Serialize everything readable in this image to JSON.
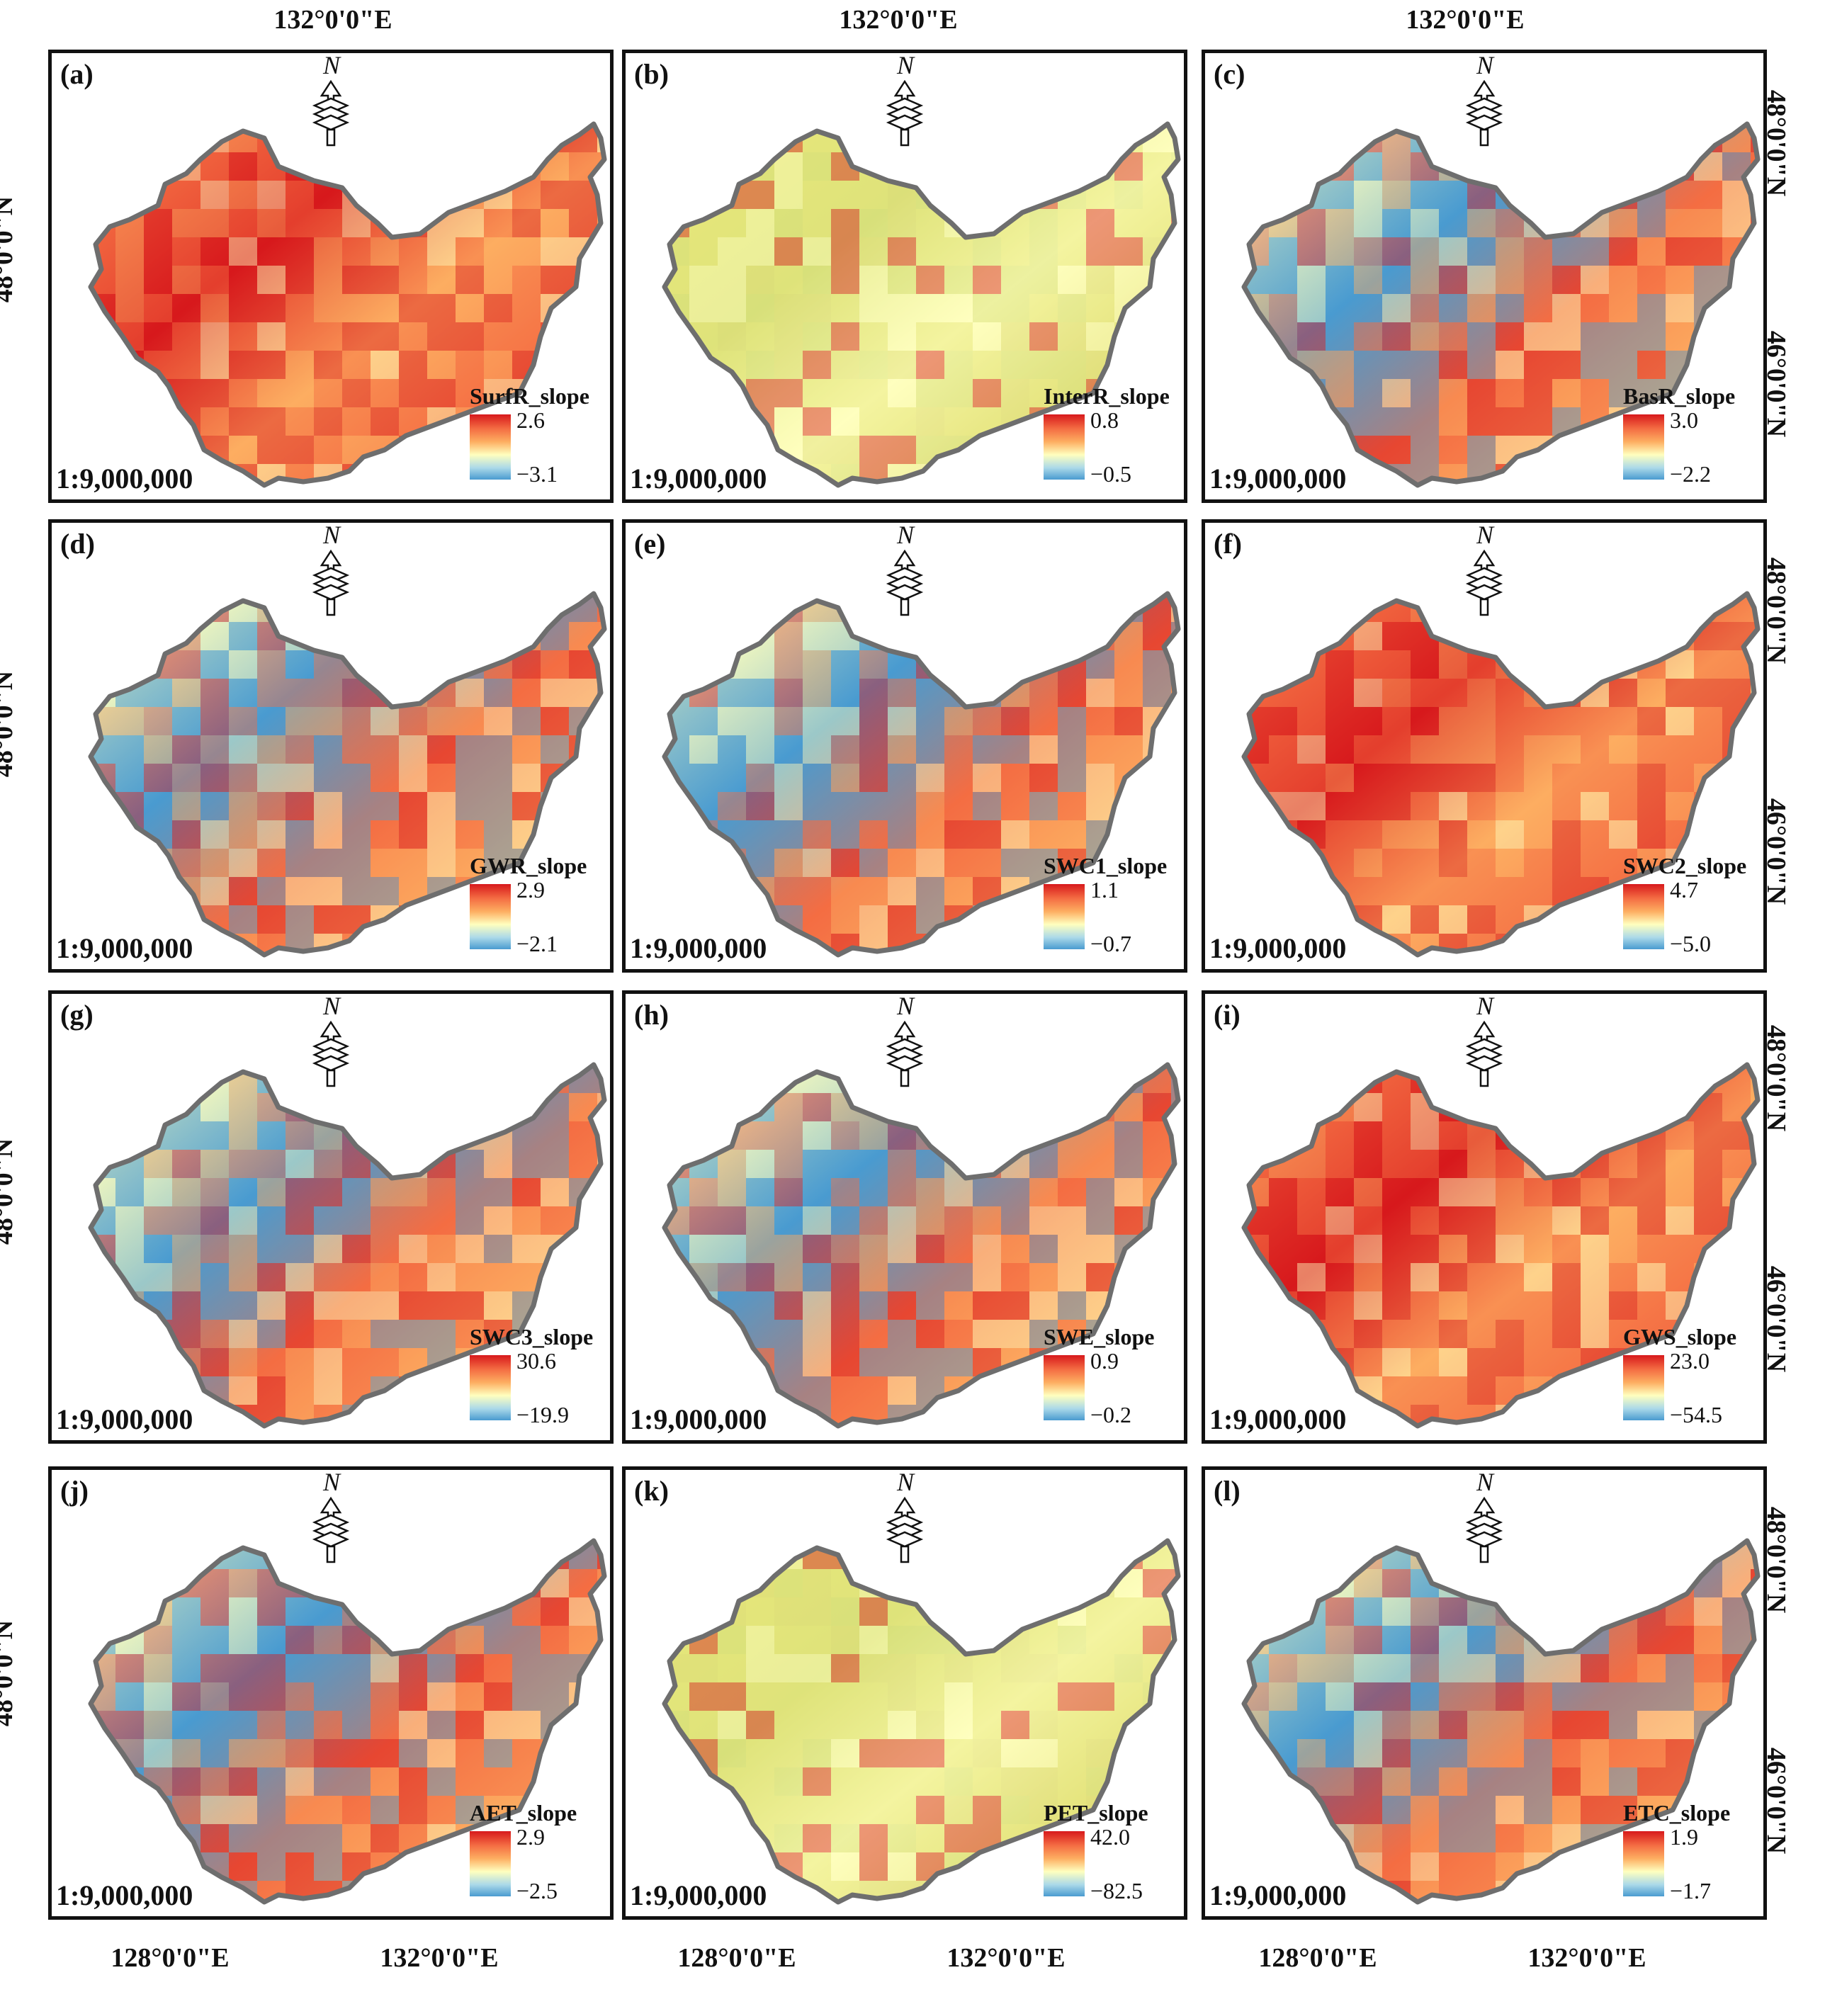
{
  "figure": {
    "top_labels": [
      "132°0'0\"E",
      "132°0'0\"E",
      "132°0'0\"E"
    ],
    "bottom_labels": [
      "128°0'0\"E",
      "132°0'0\"E",
      "128°0'0\"E",
      "132°0'0\"E",
      "128°0'0\"E",
      "132°0'0\"E"
    ],
    "left_label": "48°0'0\"N",
    "right_labels": [
      "48°0'0\"N",
      "46°0'0\"N"
    ],
    "scale_text": "1:9,000,000",
    "north_letter": "N"
  },
  "panels": [
    {
      "letter": "(a)",
      "legend": "SurfR_slope",
      "max": "2.6",
      "min": "−3.1",
      "palette": "red"
    },
    {
      "letter": "(b)",
      "legend": "InterR_slope",
      "max": "0.8",
      "min": "−0.5",
      "palette": "yellow"
    },
    {
      "letter": "(c)",
      "legend": "BasR_slope",
      "max": "3.0",
      "min": "−2.2",
      "palette": "mixed"
    },
    {
      "letter": "(d)",
      "legend": "GWR_slope",
      "max": "2.9",
      "min": "−2.1",
      "palette": "mixed"
    },
    {
      "letter": "(e)",
      "legend": "SWC1_slope",
      "max": "1.1",
      "min": "−0.7",
      "palette": "mixed"
    },
    {
      "letter": "(f)",
      "legend": "SWC2_slope",
      "max": "4.7",
      "min": "−5.0",
      "palette": "red"
    },
    {
      "letter": "(g)",
      "legend": "SWC3_slope",
      "max": "30.6",
      "min": "−19.9",
      "palette": "mixed"
    },
    {
      "letter": "(h)",
      "legend": "SWE_slope",
      "max": "0.9",
      "min": "−0.2",
      "palette": "mixed"
    },
    {
      "letter": "(i)",
      "legend": "GWS_slope",
      "max": "23.0",
      "min": "−54.5",
      "palette": "red"
    },
    {
      "letter": "(j)",
      "legend": "AET_slope",
      "max": "2.9",
      "min": "−2.5",
      "palette": "mixed"
    },
    {
      "letter": "(k)",
      "legend": "PET_slope",
      "max": "42.0",
      "min": "−82.5",
      "palette": "yellow"
    },
    {
      "letter": "(l)",
      "legend": "ETC_slope",
      "max": "1.9",
      "min": "−1.7",
      "palette": "mixed"
    }
  ],
  "colors": {
    "high": "#d7191c",
    "mid_high": "#f46d43",
    "mid": "#fdae61",
    "neutral": "#ffffbf",
    "low": "#4a9bd0",
    "border": "#6e6e6e"
  }
}
